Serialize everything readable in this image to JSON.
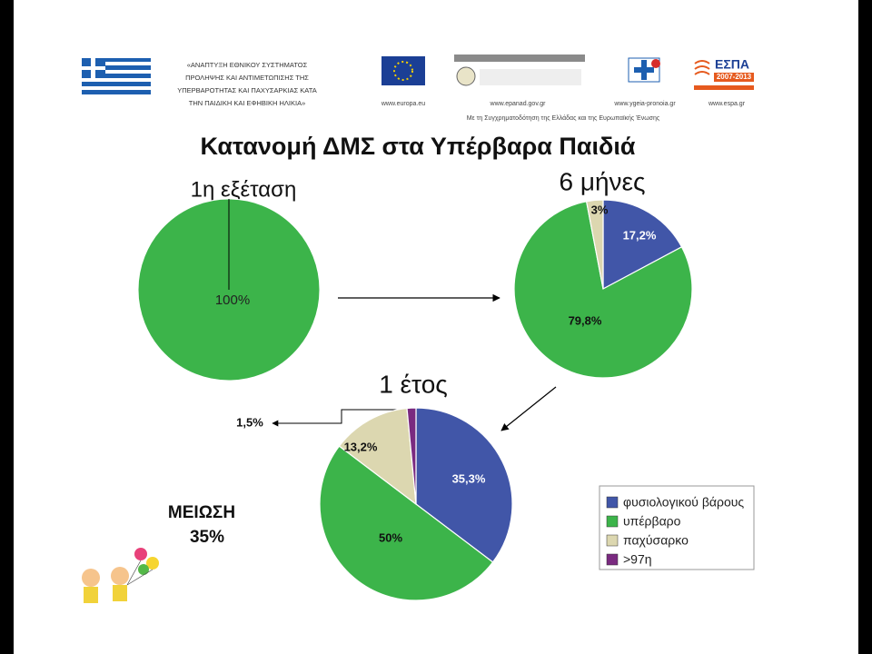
{
  "header": {
    "project_lines": [
      "«ΑΝΑΠΤΥΞΗ ΕΘΝΙΚΟΥ ΣΥΣΤΗΜΑΤΟΣ",
      "ΠΡΟΛΗΨΗΣ ΚΑΙ ΑΝΤΙΜΕΤΩΠΙΣΗΣ ΤΗΣ",
      "ΥΠΕΡΒΑΡΟΤΗΤΑΣ ΚΑΙ ΠΑΧΥΣΑΡΚΙΑΣ ΚΑΤΑ",
      "ΤΗΝ ΠΑΙΔΙΚΗ ΚΑΙ ΕΦΗΒΙΚΗ ΗΛΙΚΙΑ»"
    ],
    "logo_urls": [
      "www.europa.eu",
      "www.epanad.gov.gr",
      "www.ygeia-pronoia.gr",
      "www.espa.gr"
    ],
    "cofunding": "Με τη Συγχρηματοδότηση της Ελλάδας και της Ευρωπαϊκής Ένωσης",
    "espa_logo": "ΕΣΠΑ",
    "espa_years": "2007-2013"
  },
  "title": "Κατανομή ΔΜΣ στα Υπέρβαρα Παιδιά",
  "annotation": [
    "ΜΕΙΩΣΗ",
    "35%"
  ],
  "chart_data": [
    {
      "type": "pie",
      "title": "1η εξέταση",
      "categories": [
        "υπέρβαρο"
      ],
      "values": [
        100
      ],
      "value_labels": [
        "100%"
      ],
      "colors": [
        "#3cb44a"
      ]
    },
    {
      "type": "pie",
      "title": "6 μήνες",
      "categories": [
        "φυσιολογικού βάρους",
        "υπέρβαρο",
        "παχύσαρκο"
      ],
      "values": [
        17.2,
        79.8,
        3
      ],
      "value_labels": [
        "17,2%",
        "79,8%",
        "3%"
      ],
      "colors": [
        "#4156a8",
        "#3cb44a",
        "#dcd7b0"
      ]
    },
    {
      "type": "pie",
      "title": "1 έτος",
      "categories": [
        "φυσιολογικού βάρους",
        "υπέρβαρο",
        "παχύσαρκο",
        ">97η"
      ],
      "values": [
        35.3,
        50,
        13.2,
        1.5
      ],
      "value_labels": [
        "35,3%",
        "50%",
        "13,2%",
        "1,5%"
      ],
      "colors": [
        "#4156a8",
        "#3cb44a",
        "#dcd7b0",
        "#7a2a80"
      ],
      "legend": true,
      "legend_position": "lower right"
    }
  ]
}
